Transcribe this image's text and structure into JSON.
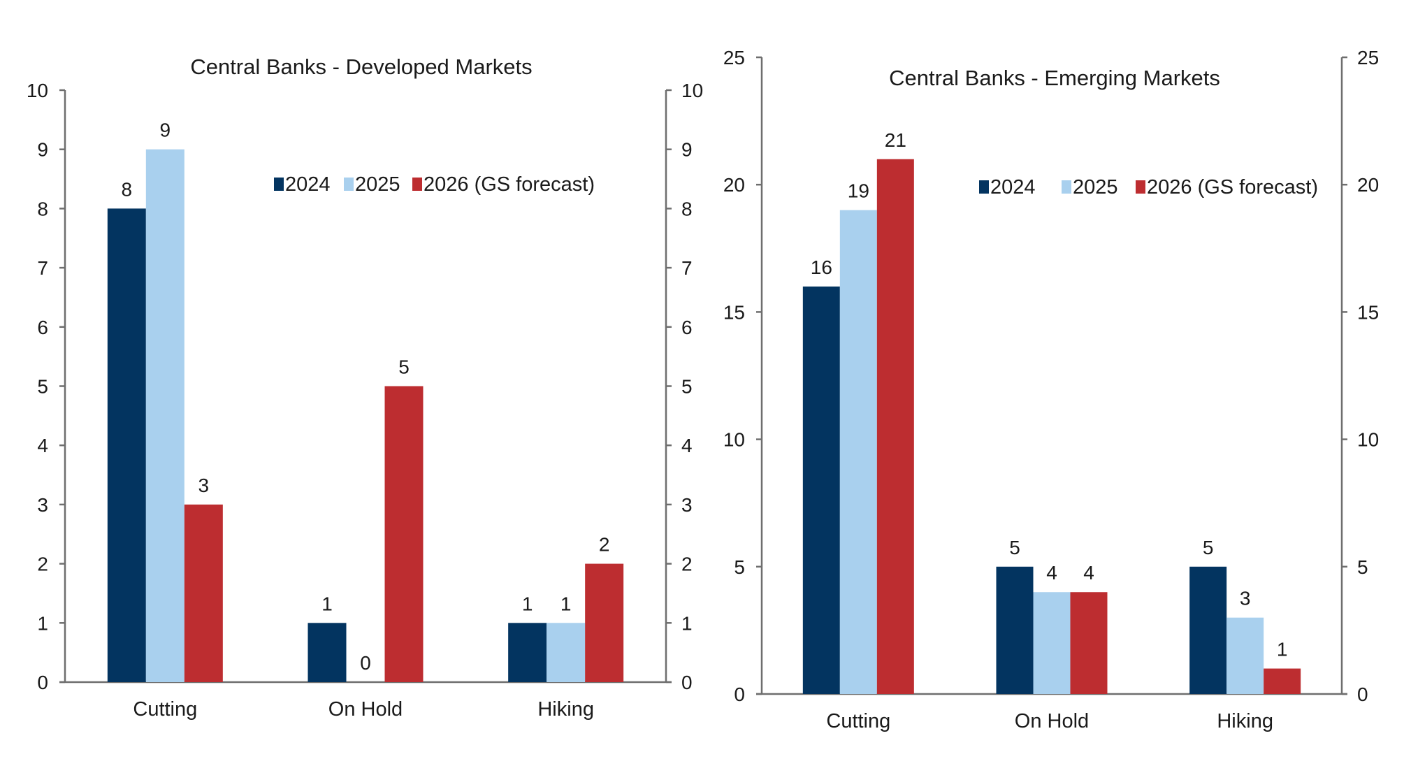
{
  "colors": {
    "2024": "#033460",
    "2025": "#a9d0ee",
    "2026": "#bd2d30",
    "axis": "#6e6e6e",
    "text": "#1a1a1a"
  },
  "chart_data": [
    {
      "type": "bar",
      "title": "Central Banks - Developed Markets",
      "categories": [
        "Cutting",
        "On Hold",
        "Hiking"
      ],
      "series": [
        {
          "name": "2024",
          "key": "2024",
          "values": [
            8,
            1,
            1
          ]
        },
        {
          "name": "2025",
          "key": "2025",
          "values": [
            9,
            0,
            1
          ]
        },
        {
          "name": "2026 (GS forecast)",
          "key": "2026",
          "values": [
            3,
            5,
            2
          ]
        }
      ],
      "xlabel": "",
      "ylabel": "",
      "ylim": [
        0,
        10
      ],
      "yticks": [
        0,
        1,
        2,
        3,
        4,
        5,
        6,
        7,
        8,
        9,
        10
      ],
      "secondary_yticks": [
        0,
        1,
        2,
        3,
        4,
        5,
        6,
        7,
        8,
        9,
        10
      ],
      "data_labels": true,
      "grid": false,
      "legend": "top-right"
    },
    {
      "type": "bar",
      "title": "Central Banks - Emerging Markets",
      "categories": [
        "Cutting",
        "On Hold",
        "Hiking"
      ],
      "series": [
        {
          "name": "2024",
          "key": "2024",
          "values": [
            16,
            5,
            5
          ]
        },
        {
          "name": "2025",
          "key": "2025",
          "values": [
            19,
            4,
            3
          ]
        },
        {
          "name": "2026 (GS forecast)",
          "key": "2026",
          "values": [
            21,
            4,
            1
          ]
        }
      ],
      "xlabel": "",
      "ylabel": "",
      "ylim": [
        0,
        25
      ],
      "yticks": [
        0,
        5,
        10,
        15,
        20,
        25
      ],
      "secondary_yticks": [
        0,
        5,
        10,
        15,
        20,
        25
      ],
      "data_labels": true,
      "grid": false,
      "legend": "top-right"
    }
  ]
}
